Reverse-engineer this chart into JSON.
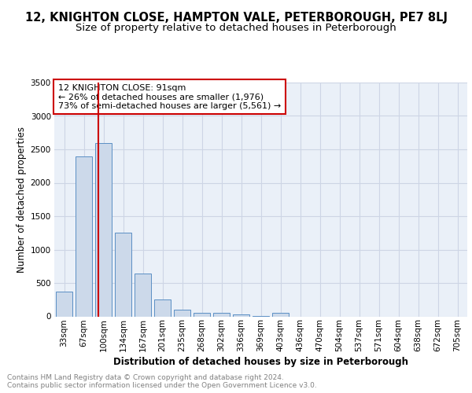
{
  "title1": "12, KNIGHTON CLOSE, HAMPTON VALE, PETERBOROUGH, PE7 8LJ",
  "title2": "Size of property relative to detached houses in Peterborough",
  "xlabel": "Distribution of detached houses by size in Peterborough",
  "ylabel": "Number of detached properties",
  "categories": [
    "33sqm",
    "67sqm",
    "100sqm",
    "134sqm",
    "167sqm",
    "201sqm",
    "235sqm",
    "268sqm",
    "302sqm",
    "336sqm",
    "369sqm",
    "403sqm",
    "436sqm",
    "470sqm",
    "504sqm",
    "537sqm",
    "571sqm",
    "604sqm",
    "638sqm",
    "672sqm",
    "705sqm"
  ],
  "values": [
    375,
    2390,
    2590,
    1255,
    640,
    250,
    100,
    55,
    50,
    30,
    5,
    55,
    0,
    0,
    0,
    0,
    0,
    0,
    0,
    0,
    0
  ],
  "bar_color": "#ccd9ea",
  "bar_edge_color": "#5b8fc4",
  "grid_color": "#cdd5e5",
  "bg_color": "#eaf0f8",
  "vline_x": 1.73,
  "vline_color": "#cc0000",
  "annotation_text": "12 KNIGHTON CLOSE: 91sqm\n← 26% of detached houses are smaller (1,976)\n73% of semi-detached houses are larger (5,561) →",
  "footer": "Contains HM Land Registry data © Crown copyright and database right 2024.\nContains public sector information licensed under the Open Government Licence v3.0.",
  "ylim": [
    0,
    3500
  ],
  "yticks": [
    0,
    500,
    1000,
    1500,
    2000,
    2500,
    3000,
    3500
  ],
  "title1_fontsize": 10.5,
  "title2_fontsize": 9.5,
  "xlabel_fontsize": 8.5,
  "ylabel_fontsize": 8.5,
  "tick_fontsize": 7.5,
  "annotation_fontsize": 8.0,
  "footer_fontsize": 6.5
}
